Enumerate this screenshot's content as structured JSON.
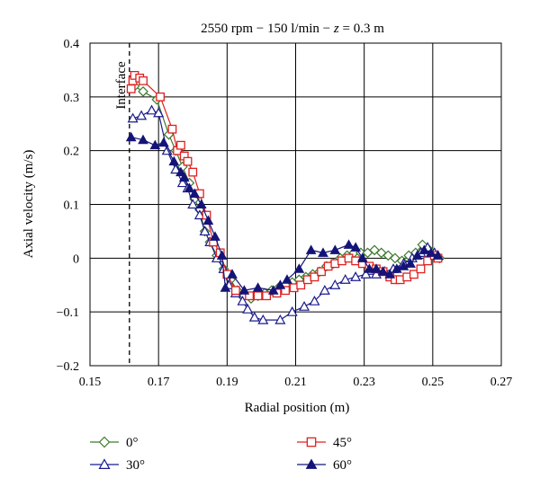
{
  "chart_data": {
    "type": "line",
    "title_parts": [
      "2550 rpm − 150 l/min − ",
      "z",
      " = 0.3 m"
    ],
    "xlabel": "Radial position (m)",
    "ylabel": "Axial velocity (m/s)",
    "xlim": [
      0.15,
      0.27
    ],
    "ylim": [
      -0.2,
      0.4
    ],
    "xticks": [
      0.15,
      0.17,
      0.19,
      0.21,
      0.23,
      0.25,
      0.27
    ],
    "xtick_labels": [
      "0.15",
      "0.17",
      "0.19",
      "0.21",
      "0.23",
      "0.25",
      "0.27"
    ],
    "yticks": [
      -0.2,
      -0.1,
      0,
      0.1,
      0.2,
      0.3,
      0.4
    ],
    "ytick_labels": [
      "−0.2",
      "−0.1",
      "0",
      "0.1",
      "0.2",
      "0.3",
      "0.4"
    ],
    "grid": true,
    "legend_position": "bottom",
    "annotation": {
      "text": "Interface",
      "x": 0.1615
    },
    "series": [
      {
        "name": "0°",
        "color": "#3d7a2e",
        "marker": "diamond-open",
        "x": [
          0.163,
          0.1655,
          0.1695,
          0.173,
          0.175,
          0.177,
          0.179,
          0.1805,
          0.182,
          0.1835,
          0.185,
          0.187,
          0.189,
          0.191,
          0.193,
          0.195,
          0.197,
          0.199,
          0.201,
          0.203,
          0.205,
          0.207,
          0.209,
          0.211,
          0.213,
          0.215,
          0.217,
          0.219,
          0.221,
          0.223,
          0.225,
          0.227,
          0.229,
          0.231,
          0.233,
          0.235,
          0.237,
          0.239,
          0.241,
          0.243,
          0.245,
          0.247,
          0.249,
          0.251,
          0.252
        ],
        "y": [
          0.32,
          0.31,
          0.295,
          0.23,
          0.2,
          0.17,
          0.14,
          0.11,
          0.09,
          0.05,
          0.03,
          0.005,
          -0.02,
          -0.04,
          -0.06,
          -0.07,
          -0.075,
          -0.07,
          -0.065,
          -0.06,
          -0.055,
          -0.05,
          -0.045,
          -0.04,
          -0.035,
          -0.03,
          -0.025,
          -0.015,
          -0.01,
          0.0,
          0.005,
          0.01,
          0.01,
          0.01,
          0.015,
          0.01,
          0.005,
          0.0,
          -0.005,
          0.005,
          0.01,
          0.025,
          0.015,
          0.005,
          0.0
        ]
      },
      {
        "name": "30°",
        "color": "#1a1a8c",
        "marker": "triangle-open",
        "x": [
          0.1625,
          0.165,
          0.168,
          0.17,
          0.1725,
          0.175,
          0.177,
          0.1785,
          0.18,
          0.182,
          0.1835,
          0.185,
          0.187,
          0.189,
          0.1905,
          0.1925,
          0.1945,
          0.196,
          0.198,
          0.2005,
          0.2055,
          0.209,
          0.2125,
          0.2155,
          0.2185,
          0.2215,
          0.2245,
          0.2275,
          0.2305,
          0.2335,
          0.236,
          0.2385,
          0.2415,
          0.244,
          0.2465,
          0.2485,
          0.2505,
          0.2515
        ],
        "y": [
          0.26,
          0.265,
          0.275,
          0.27,
          0.2,
          0.165,
          0.14,
          0.13,
          0.1,
          0.08,
          0.05,
          0.03,
          0.0,
          -0.02,
          -0.05,
          -0.065,
          -0.08,
          -0.095,
          -0.11,
          -0.115,
          -0.115,
          -0.1,
          -0.09,
          -0.08,
          -0.06,
          -0.05,
          -0.04,
          -0.035,
          -0.03,
          -0.03,
          -0.025,
          -0.02,
          -0.01,
          0.0,
          0.01,
          0.02,
          0.01,
          0.005
        ]
      },
      {
        "name": "45°",
        "color": "#e02020",
        "marker": "square-open",
        "x": [
          0.162,
          0.1625,
          0.163,
          0.1645,
          0.1655,
          0.1705,
          0.174,
          0.1755,
          0.1765,
          0.1775,
          0.1785,
          0.18,
          0.182,
          0.184,
          0.186,
          0.188,
          0.19,
          0.1925,
          0.1965,
          0.199,
          0.2015,
          0.2045,
          0.207,
          0.2095,
          0.2115,
          0.2135,
          0.2155,
          0.2175,
          0.2195,
          0.2215,
          0.2235,
          0.2255,
          0.2275,
          0.2295,
          0.2315,
          0.2335,
          0.2355,
          0.2375,
          0.239,
          0.2405,
          0.2425,
          0.2445,
          0.2465,
          0.2485,
          0.2505,
          0.2515
        ],
        "y": [
          0.315,
          0.33,
          0.34,
          0.335,
          0.33,
          0.3,
          0.24,
          0.2,
          0.21,
          0.19,
          0.18,
          0.16,
          0.12,
          0.08,
          0.03,
          0.01,
          -0.03,
          -0.06,
          -0.07,
          -0.07,
          -0.07,
          -0.065,
          -0.06,
          -0.055,
          -0.05,
          -0.04,
          -0.035,
          -0.025,
          -0.015,
          -0.01,
          -0.005,
          0.0,
          -0.005,
          -0.01,
          -0.015,
          -0.02,
          -0.025,
          -0.035,
          -0.04,
          -0.04,
          -0.035,
          -0.03,
          -0.02,
          -0.005,
          0.005,
          0.0
        ]
      },
      {
        "name": "60°",
        "color": "#141478",
        "marker": "triangle-filled",
        "x": [
          0.162,
          0.1655,
          0.169,
          0.1715,
          0.1745,
          0.1765,
          0.1775,
          0.179,
          0.1805,
          0.1825,
          0.1845,
          0.1865,
          0.1885,
          0.1895,
          0.1915,
          0.195,
          0.199,
          0.2035,
          0.2055,
          0.2075,
          0.211,
          0.2145,
          0.218,
          0.2215,
          0.2255,
          0.2275,
          0.2295,
          0.2315,
          0.2335,
          0.2355,
          0.2375,
          0.2395,
          0.2415,
          0.2435,
          0.2455,
          0.2475,
          0.2495,
          0.2515
        ],
        "y": [
          0.225,
          0.22,
          0.21,
          0.215,
          0.18,
          0.16,
          0.15,
          0.13,
          0.12,
          0.1,
          0.07,
          0.04,
          0.005,
          -0.055,
          -0.03,
          -0.06,
          -0.055,
          -0.06,
          -0.05,
          -0.04,
          -0.02,
          0.015,
          0.01,
          0.015,
          0.025,
          0.02,
          0.0,
          -0.02,
          -0.02,
          -0.025,
          -0.03,
          -0.02,
          -0.015,
          -0.01,
          0.005,
          0.015,
          0.01,
          0.005
        ]
      }
    ]
  }
}
